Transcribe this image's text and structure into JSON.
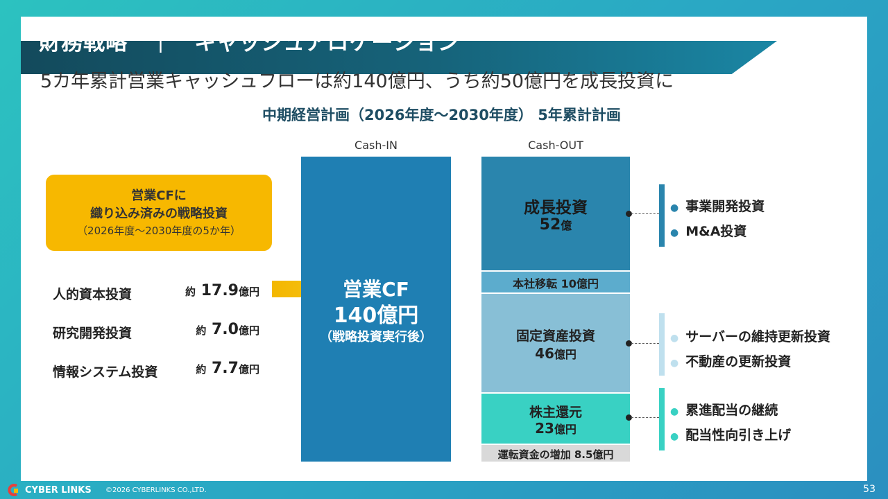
{
  "header": {
    "title": "財務戦略　｜　キャッシュアロケーション",
    "subtitle": "5カ年累計営業キャッシュフローは約140億円、うち約50億円を成長投資に"
  },
  "plan_title": "中期経営計画（2026年度～2030年度） 5年累計計画",
  "columns": {
    "cash_in": "Cash-IN",
    "cash_out": "Cash-OUT"
  },
  "callout": {
    "line1": "営業CFに",
    "line2": "織り込み済みの戦略投資",
    "line3": "（2026年度～2030年度の5か年）"
  },
  "allocations": [
    {
      "name": "人的資本投資",
      "approx": "約",
      "value": "17.9",
      "unit": "億円"
    },
    {
      "name": "研究開発投資",
      "approx": "約",
      "value": "7.0",
      "unit": "億円"
    },
    {
      "name": "情報システム投資",
      "approx": "約",
      "value": "7.7",
      "unit": "億円"
    }
  ],
  "cash_in": {
    "line1": "営業CF",
    "line2": "140億円",
    "line3": "（戦略投資実行後）"
  },
  "cash_out": {
    "growth": {
      "label": "成長投資",
      "value": "52",
      "unit": "億"
    },
    "hq": {
      "label": "本社移転 10億円"
    },
    "fixed": {
      "label": "固定資産投資",
      "value": "46",
      "unit": "億円"
    },
    "shareholder": {
      "label": "株主還元",
      "value": "23",
      "unit": "億円"
    },
    "working_capital": {
      "label": "運転資金の増加 8.5億円"
    }
  },
  "details": {
    "growth": [
      "事業開発投資",
      "M&A投資"
    ],
    "fixed": [
      "サーバーの維持更新投資",
      "不動産の更新投資"
    ],
    "shareholder": [
      "累進配当の継続",
      "配当性向引き上げ"
    ]
  },
  "colors": {
    "title_band": "#134a5c",
    "callout": "#f7b800",
    "cash_in": "#1f7fb3",
    "growth": "#2a85ad",
    "hq": "#5caccd",
    "fixed": "#88bfd6",
    "shareholder": "#39d1c3",
    "working_capital": "#d9d9d9"
  },
  "footer": {
    "logo_text": "CYBER LINKS",
    "copyright": "©2026 CYBERLINKS CO.,LTD.",
    "page_number": "53"
  }
}
